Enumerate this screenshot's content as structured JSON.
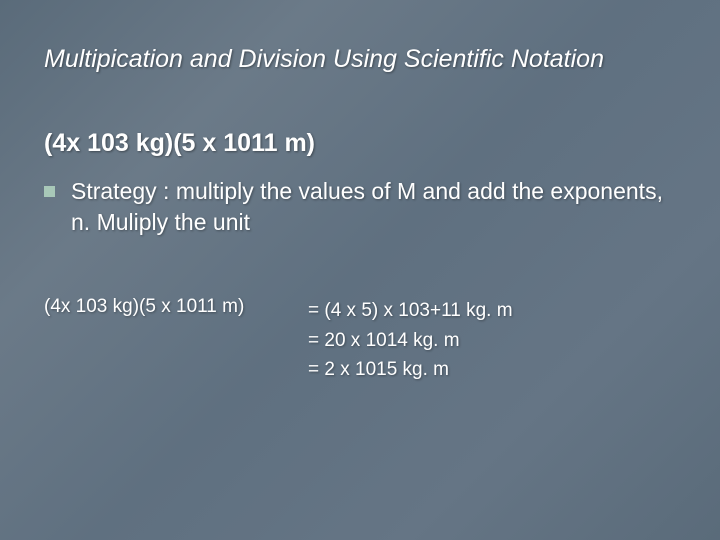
{
  "slide": {
    "title": "Multipication and Division Using Scientific Notation",
    "subtitle": "(4x 103 kg)(5 x 1011 m)",
    "bullet": "Strategy : multiply the values of M and add the exponents, n. Muliply the unit",
    "equation": {
      "left": "(4x 103 kg)(5 x 1011 m)",
      "lines": [
        "= (4 x 5) x 103+11 kg. m",
        "= 20 x 1014 kg. m",
        "= 2 x 1015 kg. m"
      ]
    }
  },
  "style": {
    "background_gradient": [
      "#5a6b7a",
      "#6b7a88",
      "#5f7080",
      "#657585",
      "#5a6b7a"
    ],
    "text_color": "#ffffff",
    "bullet_color": "#a8c8b8",
    "title_fontsize": 25,
    "subtitle_fontsize": 25,
    "body_fontsize": 23,
    "equation_fontsize": 19,
    "title_italic": true,
    "subtitle_bold": true
  }
}
